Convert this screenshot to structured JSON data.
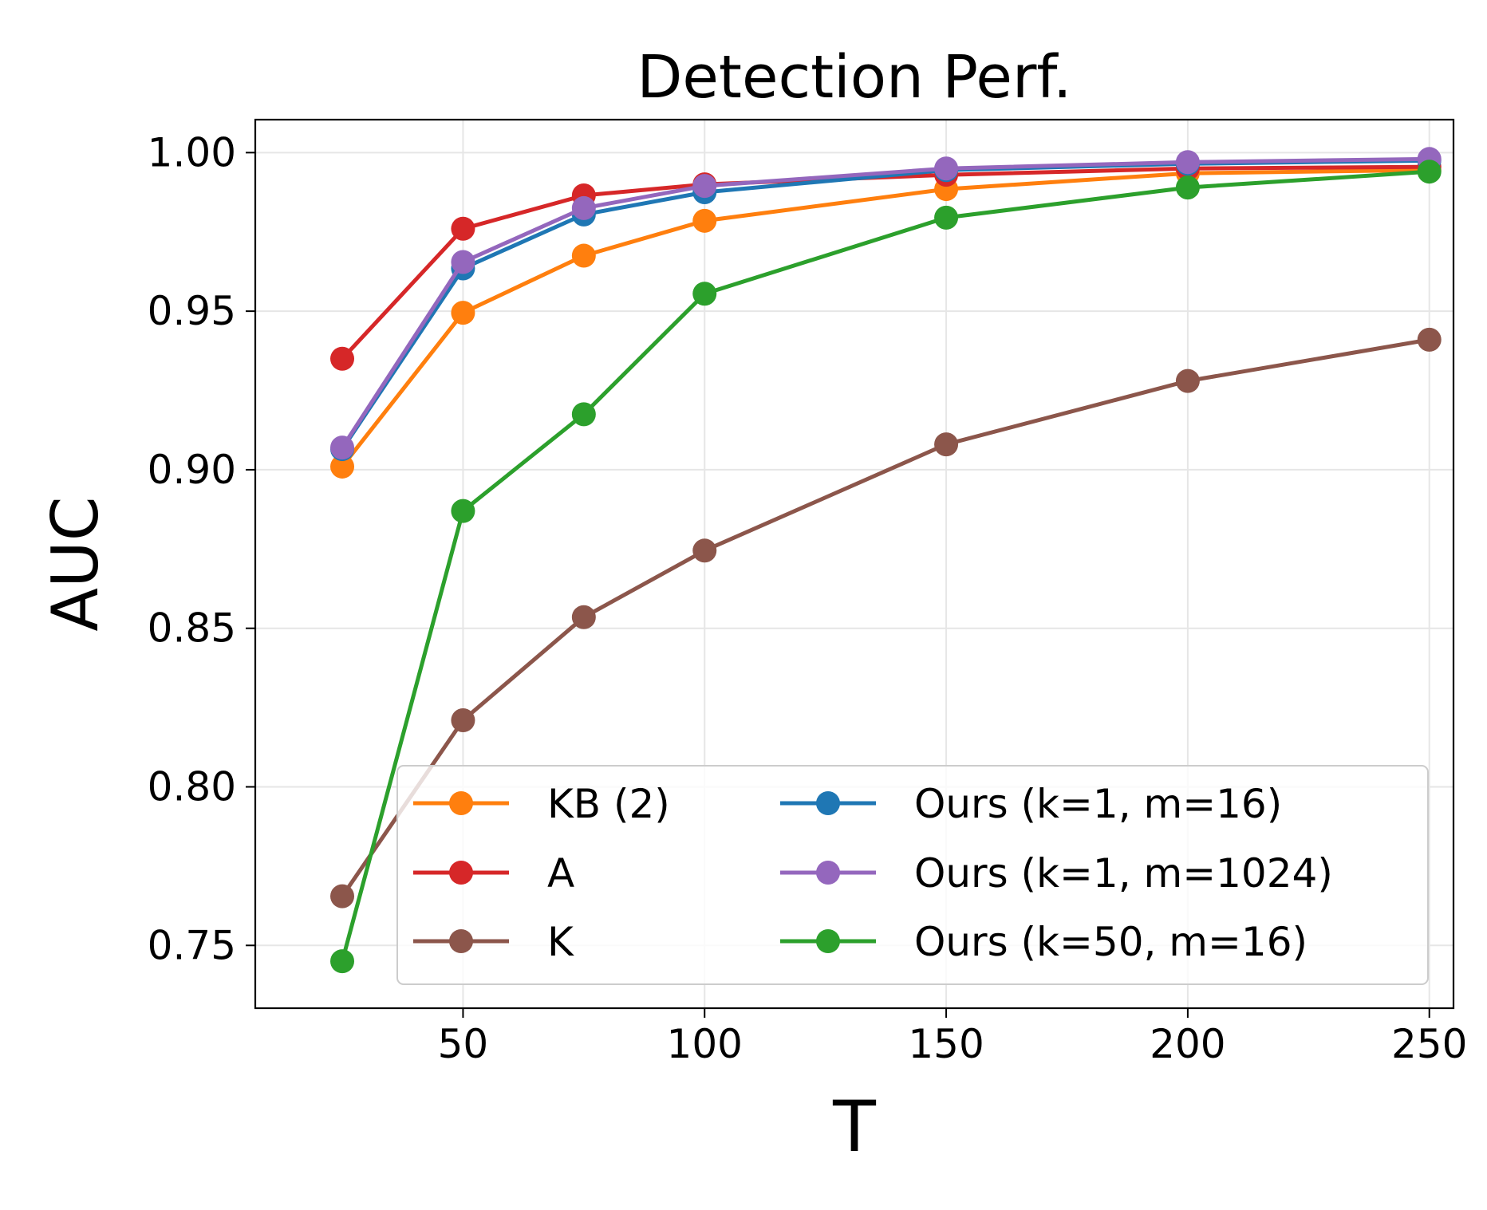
{
  "chart_data": {
    "type": "line",
    "title": "Detection Perf.",
    "xlabel": "T",
    "ylabel": "AUC",
    "x": [
      25,
      50,
      75,
      100,
      150,
      200,
      250
    ],
    "xlim": [
      7,
      255
    ],
    "ylim": [
      0.7302,
      1.0104
    ],
    "xticks": [
      50,
      100,
      150,
      200,
      250
    ],
    "xtick_labels": [
      "50",
      "100",
      "150",
      "200",
      "250"
    ],
    "yticks": [
      0.75,
      0.8,
      0.85,
      0.9,
      0.95,
      1.0
    ],
    "ytick_labels": [
      "0.75",
      "0.80",
      "0.85",
      "0.90",
      "0.95",
      "1.00"
    ],
    "grid": true,
    "legend_position": "lower-right",
    "series": [
      {
        "name": "KB (2)",
        "color": "#ff7f0e",
        "values": [
          0.901,
          0.9495,
          0.9675,
          0.9785,
          0.9885,
          0.9935,
          0.9945
        ]
      },
      {
        "name": "A",
        "color": "#d62728",
        "values": [
          0.935,
          0.976,
          0.9865,
          0.99,
          0.993,
          0.995,
          0.9955
        ]
      },
      {
        "name": "K",
        "color": "#8c564b",
        "values": [
          0.7655,
          0.821,
          0.8535,
          0.8745,
          0.908,
          0.928,
          0.941
        ]
      },
      {
        "name": "Ours (k=1, m=16)",
        "color": "#1f77b4",
        "values": [
          0.9065,
          0.9635,
          0.9805,
          0.9875,
          0.9945,
          0.9965,
          0.9975
        ]
      },
      {
        "name": "Ours (k=1, m=1024)",
        "color": "#9467bd",
        "values": [
          0.907,
          0.9655,
          0.9825,
          0.9895,
          0.995,
          0.997,
          0.998
        ]
      },
      {
        "name": "Ours (k=50, m=16)",
        "color": "#2ca02c",
        "values": [
          0.745,
          0.887,
          0.9175,
          0.9555,
          0.9795,
          0.989,
          0.994
        ]
      }
    ]
  }
}
